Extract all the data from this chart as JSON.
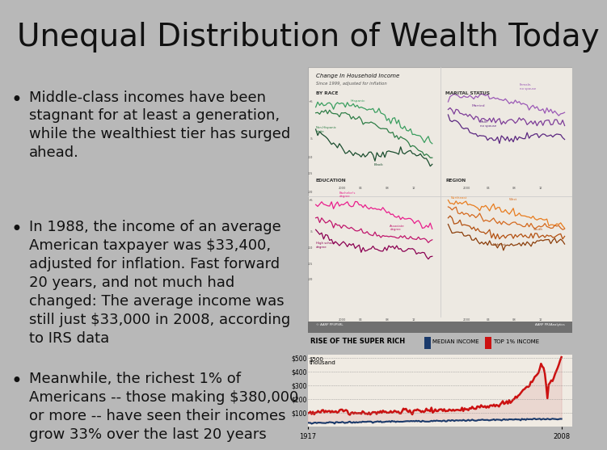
{
  "title": "Unequal Distribution of Wealth Today",
  "title_fontsize": 28,
  "title_color": "#111111",
  "background_color": "#b8b8b8",
  "bullet_color": "#111111",
  "bullet_fontsize": 13,
  "bullets": [
    "Middle-class incomes have been\nstagnant for at least a generation,\nwhile the wealthiest tier has surged\nahead.",
    "In 1988, the income of an average\nAmerican taxpayer was $33,400,\nadjusted for inflation. Fast forward\n20 years, and not much had\nchanged: The average income was\nstill just $33,000 in 2008, according\nto IRS data",
    "Meanwhile, the richest 1% of\nAmericans -- those making $380,000\nor more -- have seen their incomes\ngrow 33% over the last 20 years"
  ],
  "top1_label": "TOP 1% INCOME",
  "median_label": "MEDIAN INCOME",
  "rise_title": "RISE OF THE SUPER RICH"
}
